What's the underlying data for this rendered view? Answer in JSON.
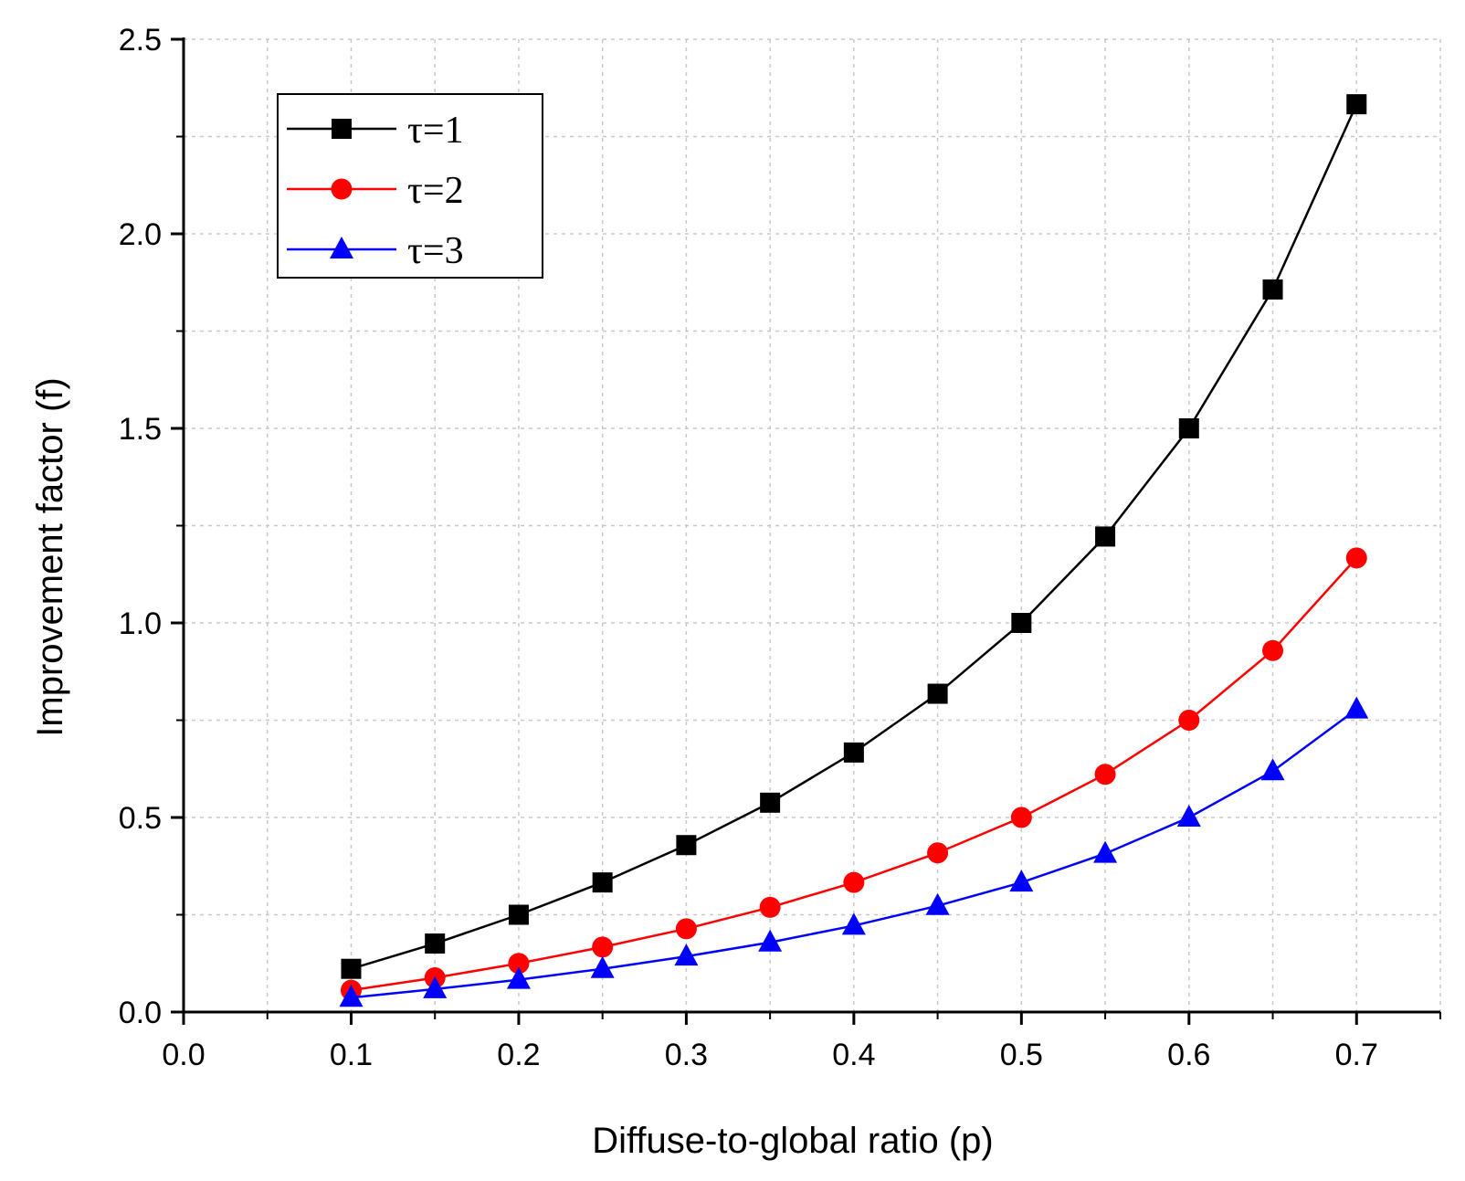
{
  "chart_data": {
    "type": "line",
    "title": "",
    "xlabel": "Diffuse-to-global ratio (p)",
    "ylabel": "Improvement factor (f)",
    "xlim": [
      0.0,
      0.75
    ],
    "ylim": [
      0.0,
      2.5
    ],
    "xticks": [
      "0.0",
      "0.1",
      "0.2",
      "0.3",
      "0.4",
      "0.5",
      "0.6",
      "0.7"
    ],
    "yticks": [
      "0.0",
      "0.5",
      "1.0",
      "1.5",
      "2.0",
      "2.5"
    ],
    "grid": true,
    "legend_position": "top-left",
    "x": [
      0.1,
      0.15,
      0.2,
      0.25,
      0.3,
      0.35,
      0.4,
      0.45,
      0.5,
      0.55,
      0.6,
      0.65,
      0.7
    ],
    "series": [
      {
        "name": "τ=1",
        "color": "#000000",
        "marker": "square",
        "values": [
          0.111,
          0.176,
          0.25,
          0.333,
          0.429,
          0.538,
          0.667,
          0.818,
          1.0,
          1.222,
          1.5,
          1.857,
          2.333
        ]
      },
      {
        "name": "τ=2",
        "color": "#ff0000",
        "marker": "circle",
        "values": [
          0.056,
          0.088,
          0.125,
          0.167,
          0.214,
          0.269,
          0.333,
          0.409,
          0.5,
          0.611,
          0.75,
          0.929,
          1.167
        ]
      },
      {
        "name": "τ=3",
        "color": "#0000ff",
        "marker": "triangle",
        "values": [
          0.037,
          0.059,
          0.083,
          0.111,
          0.143,
          0.179,
          0.222,
          0.273,
          0.333,
          0.407,
          0.5,
          0.619,
          0.778
        ]
      }
    ]
  }
}
